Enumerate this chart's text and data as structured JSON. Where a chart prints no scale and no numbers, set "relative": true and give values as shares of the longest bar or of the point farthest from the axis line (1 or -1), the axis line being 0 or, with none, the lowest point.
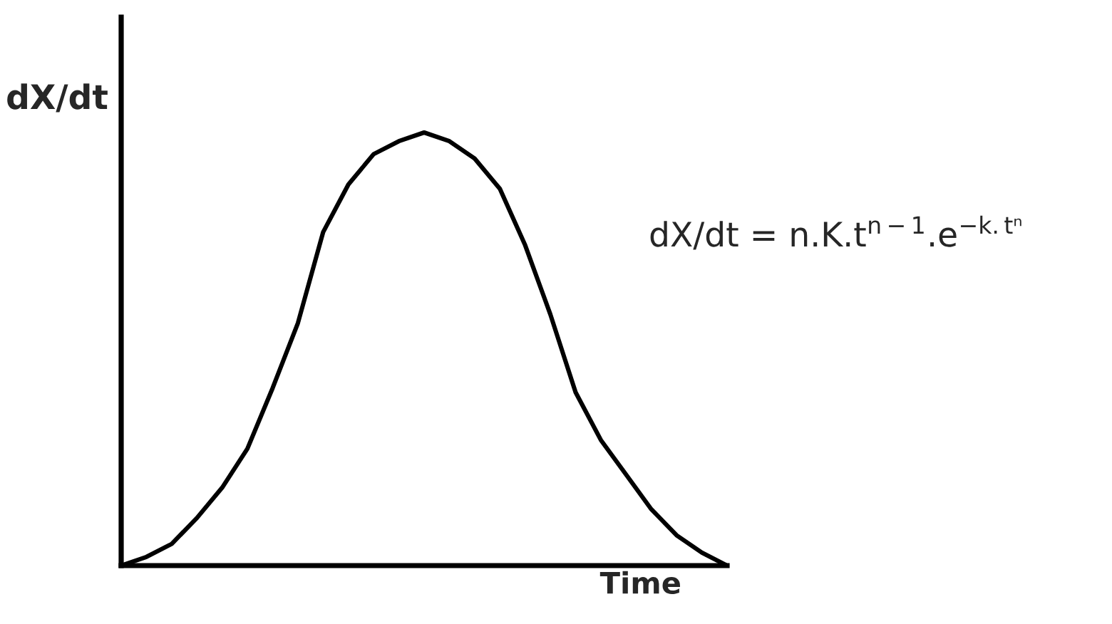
{
  "chart_data": {
    "type": "line",
    "relative": true,
    "categories": [
      null,
      null,
      null,
      null,
      null,
      null,
      null,
      null,
      null,
      null,
      null,
      null,
      null,
      null,
      null,
      null,
      null,
      null,
      null,
      null,
      null,
      null,
      null,
      null,
      null
    ],
    "series": [
      {
        "color": "#000000",
        "values": [
          0,
          0.02,
          0.05,
          0.11,
          0.18,
          0.27,
          0.41,
          0.56,
          0.77,
          0.88,
          0.95,
          0.98,
          1,
          0.98,
          0.94,
          0.87,
          0.74,
          0.58,
          0.4,
          0.29,
          0.21,
          0.13,
          0.07,
          0.03,
          0
        ]
      }
    ],
    "xlabel": "Time",
    "ylabel": "dX/dt",
    "annotations": [
      "dX/dt = n.K.t$^{n−1}$.e$^{−k.tⁿ}$"
    ],
    "line_style": "solid"
  }
}
